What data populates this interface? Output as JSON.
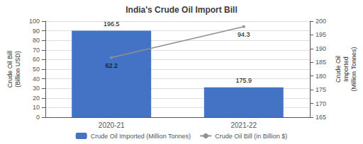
{
  "chart_data": {
    "type": "bar",
    "title": "India's Crude Oil Import Bill",
    "categories": [
      "2020-21",
      "2021-22"
    ],
    "series": [
      {
        "name": "Crude Oil Imported (Million Tonnes)",
        "type": "bar",
        "color": "#4472C4",
        "values": [
          196.5,
          175.9
        ],
        "axis": "y2"
      },
      {
        "name": "Crude Oil Bill (in Billion $)",
        "type": "line",
        "color": "#909090",
        "values": [
          62.2,
          94.3
        ]
      }
    ],
    "ylabel": "Crude Oil Bill\n(Billion USD)",
    "y2label": "Crude Oil\nImported\n(Million Tonnes)",
    "ylim": [
      0,
      100
    ],
    "yticks": [
      0,
      10,
      20,
      30,
      40,
      50,
      60,
      70,
      80,
      90,
      100
    ],
    "y2lim": [
      165,
      200
    ],
    "y2ticks": [
      165,
      170,
      175,
      180,
      185,
      190,
      195,
      200
    ],
    "grid": true,
    "legend": "bottom",
    "data_labels": true
  }
}
